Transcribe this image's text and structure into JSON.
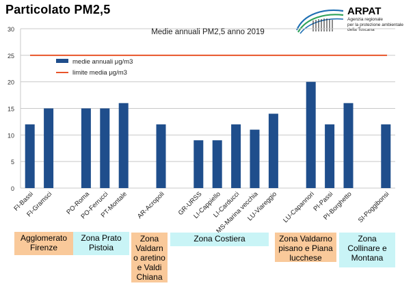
{
  "header": {
    "title": "Particolato PM2,5"
  },
  "logo": {
    "name": "ARPAT",
    "subtitle_lines": [
      "Agenzia regionale",
      "per la protezione ambientale",
      "della Toscana"
    ]
  },
  "colors": {
    "bar": "#1f4e8c",
    "limit": "#e8542a",
    "grid": "#c8c8c8",
    "zone_orange": "#f9c99a",
    "zone_cyan": "#c9f4f6"
  },
  "chart_data": {
    "type": "bar",
    "title": "Medie annuali PM2,5 anno 2019",
    "categories": [
      "FI-Bassi",
      "FI-Gramsci",
      "",
      "PO-Roma",
      "PO-Ferrucci",
      "PT-Montale",
      "",
      "AR-Acropoli",
      "",
      "GR-URSS",
      "LI-Cappiello",
      "LI-Carducci",
      "MS-Marina vecchia",
      "LU-Viareggio",
      "",
      "LU-Capannori",
      "PI-Passi",
      "PI-Borghetto",
      "",
      "SI-Poggibonsi"
    ],
    "series": [
      {
        "name": "medie annuali μg/m3",
        "type": "bar",
        "values": [
          12,
          15,
          null,
          15,
          15,
          16,
          null,
          12,
          null,
          9,
          9,
          12,
          11,
          14,
          null,
          20,
          12,
          16,
          null,
          12
        ]
      },
      {
        "name": "limite media μg/m3",
        "type": "line",
        "value": 25
      }
    ],
    "ylim": [
      0,
      30
    ],
    "yticks": [
      0,
      5,
      10,
      15,
      20,
      25,
      30
    ],
    "grid": true,
    "legend": "top-left"
  },
  "zones": [
    {
      "lines": [
        "Agglomerato",
        "Firenze"
      ],
      "style": "orange"
    },
    {
      "lines": [
        "Zona Prato",
        "Pistoia"
      ],
      "style": "cyan"
    },
    {
      "lines": [
        "Zona",
        "Valdarn",
        "o aretino",
        "e Valdi",
        "Chiana"
      ],
      "style": "orange"
    },
    {
      "lines": [
        "Zona Costiera"
      ],
      "style": "cyan"
    },
    {
      "lines": [
        "Zona Valdarno",
        "pisano e Piana",
        "lucchese"
      ],
      "style": "orange"
    },
    {
      "lines": [
        "Zona",
        "Collinare e",
        "Montana"
      ],
      "style": "cyan"
    }
  ]
}
